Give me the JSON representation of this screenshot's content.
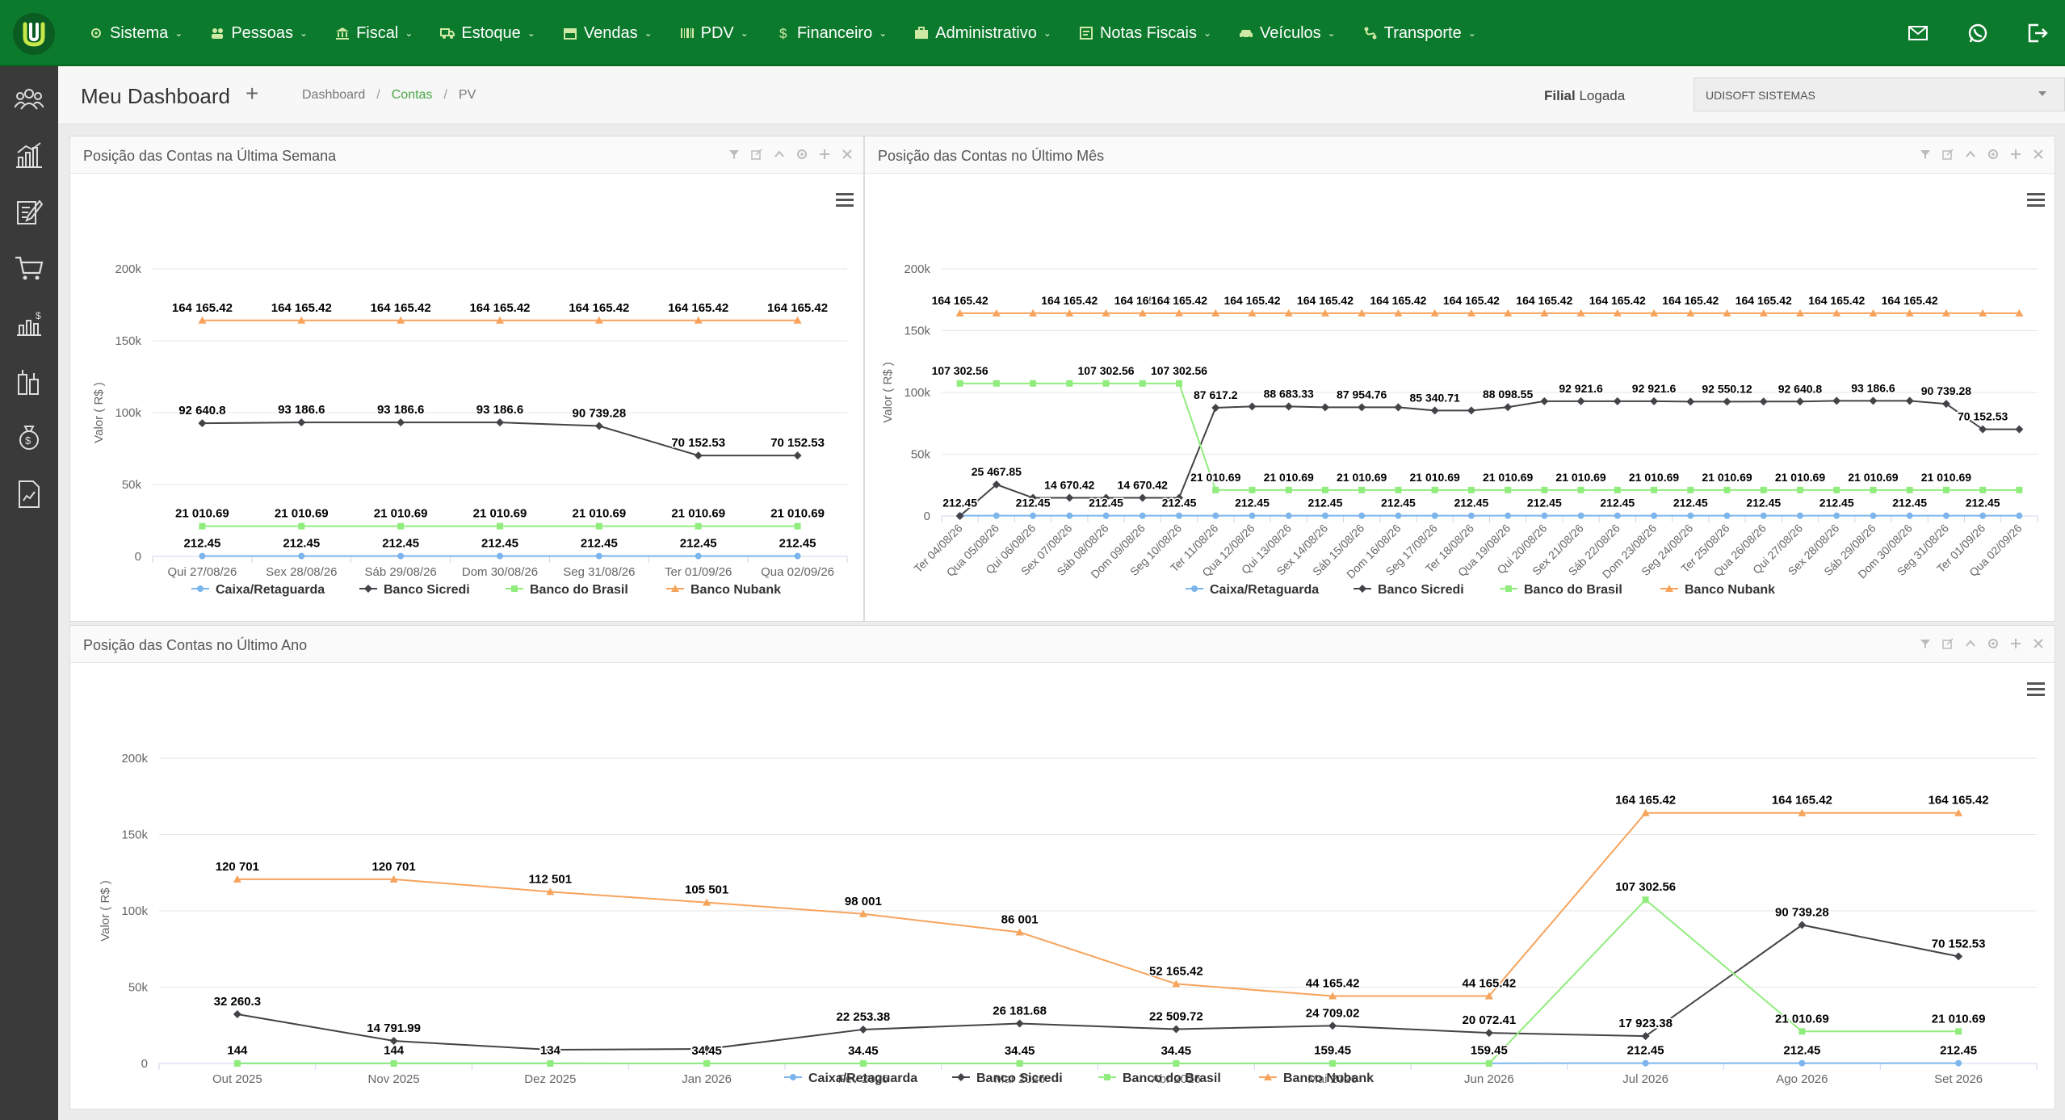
{
  "nav": {
    "items": [
      {
        "label": "Sistema",
        "icon": "gears-icon"
      },
      {
        "label": "Pessoas",
        "icon": "people-icon"
      },
      {
        "label": "Fiscal",
        "icon": "bank-icon"
      },
      {
        "label": "Estoque",
        "icon": "truck-icon"
      },
      {
        "label": "Vendas",
        "icon": "store-icon"
      },
      {
        "label": "PDV",
        "icon": "barcode-icon"
      },
      {
        "label": "Financeiro",
        "icon": "dollar-icon"
      },
      {
        "label": "Administrativo",
        "icon": "briefcase-icon"
      },
      {
        "label": "Notas Fiscais",
        "icon": "document-icon"
      },
      {
        "label": "Veículos",
        "icon": "car-icon"
      },
      {
        "label": "Transporte",
        "icon": "route-icon"
      }
    ]
  },
  "header": {
    "title_prefix": "Meu",
    "title_main": "Dashboard",
    "breadcrumb": [
      "Dashboard",
      "Contas",
      "PV"
    ],
    "filial_strong": "Filial",
    "filial_rest": "Logada",
    "filial_value": "UDISOFT SISTEMAS"
  },
  "colors": {
    "caixa": "#7cb5ec",
    "sicredi": "#434348",
    "brasil": "#90ed7d",
    "nubank": "#f7a35c",
    "brand": "#0c7a2c"
  },
  "legend": [
    "Caixa/Retaguarda",
    "Banco Sicredi",
    "Banco do Brasil",
    "Banco Nubank"
  ],
  "panels": {
    "week_title": "Posição das Contas na Última Semana",
    "month_title": "Posição das Contas no Último Mês",
    "year_title": "Posição das Contas no Último Ano"
  },
  "chart_data": [
    {
      "type": "line",
      "title": "Posição das Contas na Última Semana",
      "ylabel": "Valor ( R$ )",
      "ylim": [
        0,
        200000
      ],
      "yticks": [
        "0",
        "50k",
        "100k",
        "150k",
        "200k"
      ],
      "categories": [
        "Qui 27/08/26",
        "Sex 28/08/26",
        "Sáb 29/08/26",
        "Dom 30/08/26",
        "Seg 31/08/26",
        "Ter 01/09/26",
        "Qua 02/09/26"
      ],
      "series": [
        {
          "name": "Caixa/Retaguarda",
          "values": [
            212.45,
            212.45,
            212.45,
            212.45,
            212.45,
            212.45,
            212.45
          ],
          "labels": [
            "212.45",
            "212.45",
            "212.45",
            "212.45",
            "212.45",
            "212.45",
            "212.45"
          ]
        },
        {
          "name": "Banco Sicredi",
          "values": [
            92640.8,
            93186.6,
            93186.6,
            93186.6,
            90739.28,
            70152.53,
            70152.53
          ],
          "labels": [
            "92 640.8",
            "93 186.6",
            "93 186.6",
            "93 186.6",
            "90 739.28",
            "70 152.53",
            "70 152.53"
          ]
        },
        {
          "name": "Banco do Brasil",
          "values": [
            21010.69,
            21010.69,
            21010.69,
            21010.69,
            21010.69,
            21010.69,
            21010.69
          ],
          "labels": [
            "21 010.69",
            "21 010.69",
            "21 010.69",
            "21 010.69",
            "21 010.69",
            "21 010.69",
            "21 010.69"
          ]
        },
        {
          "name": "Banco Nubank",
          "values": [
            164165.42,
            164165.42,
            164165.42,
            164165.42,
            164165.42,
            164165.42,
            164165.42
          ],
          "labels": [
            "164 165.42",
            "164 165.42",
            "164 165.42",
            "164 165.42",
            "164 165.42",
            "164 165.42",
            "164 165.42"
          ]
        }
      ]
    },
    {
      "type": "line",
      "title": "Posição das Contas no Último Mês",
      "ylabel": "Valor ( R$ )",
      "ylim": [
        0,
        200000
      ],
      "yticks": [
        "0",
        "50k",
        "100k",
        "150k",
        "200k"
      ],
      "categories": [
        "Ter 04/08/26",
        "Qua 05/08/26",
        "Qui 06/08/26",
        "Sex 07/08/26",
        "Sáb 08/08/26",
        "Dom 09/08/26",
        "Seg 10/08/26",
        "Ter 11/08/26",
        "Qua 12/08/26",
        "Qui 13/08/26",
        "Sex 14/08/26",
        "Sáb 15/08/26",
        "Dom 16/08/26",
        "Seg 17/08/26",
        "Ter 18/08/26",
        "Qua 19/08/26",
        "Qui 20/08/26",
        "Sex 21/08/26",
        "Sáb 22/08/26",
        "Dom 23/08/26",
        "Seg 24/08/26",
        "Ter 25/08/26",
        "Qua 26/08/26",
        "Qui 27/08/26",
        "Sex 28/08/26",
        "Sáb 29/08/26",
        "Dom 30/08/26",
        "Seg 31/08/26",
        "Ter 01/09/26",
        "Qua 02/09/26"
      ],
      "series": [
        {
          "name": "Caixa/Retaguarda",
          "values": [
            212.45,
            212.45,
            212.45,
            212.45,
            212.45,
            212.45,
            212.45,
            212.45,
            212.45,
            212.45,
            212.45,
            212.45,
            212.45,
            212.45,
            212.45,
            212.45,
            212.45,
            212.45,
            212.45,
            212.45,
            212.45,
            212.45,
            212.45,
            212.45,
            212.45,
            212.45,
            212.45,
            212.45,
            212.45,
            212.45
          ],
          "labels": [
            "212.45",
            "",
            "212.45",
            "",
            "212.45",
            "",
            "212.45",
            "",
            "212.45",
            "",
            "212.45",
            "",
            "212.45",
            "",
            "212.45",
            "",
            "212.45",
            "",
            "212.45",
            "",
            "212.45",
            "",
            "212.45",
            "",
            "212.45",
            "",
            "212.45",
            "",
            "212.45",
            ""
          ]
        },
        {
          "name": "Banco Sicredi",
          "values": [
            0,
            25467.85,
            14670.42,
            14670.42,
            14670.42,
            14670.42,
            14670.42,
            87617.2,
            88683.33,
            88683.33,
            87954.76,
            87954.76,
            87954.76,
            85340.71,
            85340.71,
            88098.55,
            92921.6,
            92921.6,
            92921.6,
            92921.6,
            92550.12,
            92550.12,
            92640.8,
            92640.8,
            93186.6,
            93186.6,
            93186.6,
            90739.28,
            70152.53,
            70152.53
          ],
          "labels": [
            "",
            "25 467.85",
            "",
            "14 670.42",
            "",
            "14 670.42",
            "",
            "87 617.2",
            "",
            "88 683.33",
            "",
            "87 954.76",
            "",
            "85 340.71",
            "",
            "88 098.55",
            "",
            "92 921.6",
            "",
            "92 921.6",
            "",
            "92 550.12",
            "",
            "92 640.8",
            "",
            "93 186.6",
            "",
            "90 739.28",
            "70 152.53",
            ""
          ]
        },
        {
          "name": "Banco do Brasil",
          "values": [
            107302.56,
            107302.56,
            107302.56,
            107302.56,
            107302.56,
            107302.56,
            107302.56,
            21010.69,
            21010.69,
            21010.69,
            21010.69,
            21010.69,
            21010.69,
            21010.69,
            21010.69,
            21010.69,
            21010.69,
            21010.69,
            21010.69,
            21010.69,
            21010.69,
            21010.69,
            21010.69,
            21010.69,
            21010.69,
            21010.69,
            21010.69,
            21010.69,
            21010.69,
            21010.69
          ],
          "labels": [
            "107 302.56",
            "",
            "",
            "",
            "107 302.56",
            "",
            "107 302.56",
            "21 010.69",
            "",
            "21 010.69",
            "",
            "21 010.69",
            "",
            "21 010.69",
            "",
            "21 010.69",
            "",
            "21 010.69",
            "",
            "21 010.69",
            "",
            "21 010.69",
            "",
            "21 010.69",
            "",
            "21 010.69",
            "",
            "21 010.69",
            "",
            ""
          ]
        },
        {
          "name": "Banco Nubank",
          "values": [
            164165.42,
            164165.42,
            164165.42,
            164165.42,
            164165.42,
            164165.42,
            164165.42,
            164165.42,
            164165.42,
            164165.42,
            164165.42,
            164165.42,
            164165.42,
            164165.42,
            164165.42,
            164165.42,
            164165.42,
            164165.42,
            164165.42,
            164165.42,
            164165.42,
            164165.42,
            164165.42,
            164165.42,
            164165.42,
            164165.42,
            164165.42,
            164165.42,
            164165.42,
            164165.42
          ],
          "labels": [
            "164 165.42",
            "",
            "",
            "164 165.42",
            "",
            "164 165.42",
            "164 165.42",
            "",
            "164 165.42",
            "",
            "164 165.42",
            "",
            "164 165.42",
            "",
            "164 165.42",
            "",
            "164 165.42",
            "",
            "164 165.42",
            "",
            "164 165.42",
            "",
            "164 165.42",
            "",
            "164 165.42",
            "",
            "164 165.42",
            "",
            "",
            ""
          ]
        }
      ]
    },
    {
      "type": "line",
      "title": "Posição das Contas no Último Ano",
      "ylabel": "Valor ( R$ )",
      "ylim": [
        0,
        200000
      ],
      "yticks": [
        "0",
        "50k",
        "100k",
        "150k",
        "200k"
      ],
      "categories": [
        "Out 2025",
        "Nov 2025",
        "Dez 2025",
        "Jan 2026",
        "Fev 2026",
        "Mar 2026",
        "Abr 2026",
        "Mai 2026",
        "Jun 2026",
        "Jul 2026",
        "Ago 2026",
        "Set 2026"
      ],
      "series": [
        {
          "name": "Caixa/Retaguarda",
          "values": [
            144,
            144,
            134,
            34.45,
            34.45,
            34.45,
            34.45,
            159.45,
            159.45,
            212.45,
            212.45,
            212.45
          ],
          "labels": [
            "144",
            "144",
            "134",
            "34.45",
            "34.45",
            "34.45",
            "34.45",
            "159.45",
            "159.45",
            "212.45",
            "212.45",
            "212.45"
          ]
        },
        {
          "name": "Banco Sicredi",
          "values": [
            32260.3,
            14791.99,
            9000,
            9500,
            22253.38,
            26181.68,
            22509.72,
            24709.02,
            20072.41,
            17923.38,
            90739.28,
            70152.53
          ],
          "labels": [
            "32 260.3",
            "14 791.99",
            "",
            "",
            "22 253.38",
            "26 181.68",
            "22 509.72",
            "24 709.02",
            "20 072.41",
            "17 923.38",
            "90 739.28",
            "70 152.53"
          ]
        },
        {
          "name": "Banco do Brasil",
          "values": [
            0,
            0,
            0,
            0,
            0,
            0,
            0,
            0,
            0,
            107302.56,
            21010.69,
            21010.69
          ],
          "labels": [
            "",
            "",
            "",
            "",
            "",
            "",
            "",
            "",
            "",
            "107 302.56",
            "21 010.69",
            "21 010.69"
          ]
        },
        {
          "name": "Banco Nubank",
          "values": [
            120701,
            120701,
            112501,
            105501,
            98001,
            86001,
            52165.42,
            44165.42,
            44165.42,
            164165.42,
            164165.42,
            164165.42
          ],
          "labels": [
            "120 701",
            "120 701",
            "112 501",
            "105 501",
            "98 001",
            "86 001",
            "52 165.42",
            "44 165.42",
            "44 165.42",
            "164 165.42",
            "164 165.42",
            "164 165.42"
          ]
        }
      ]
    }
  ]
}
